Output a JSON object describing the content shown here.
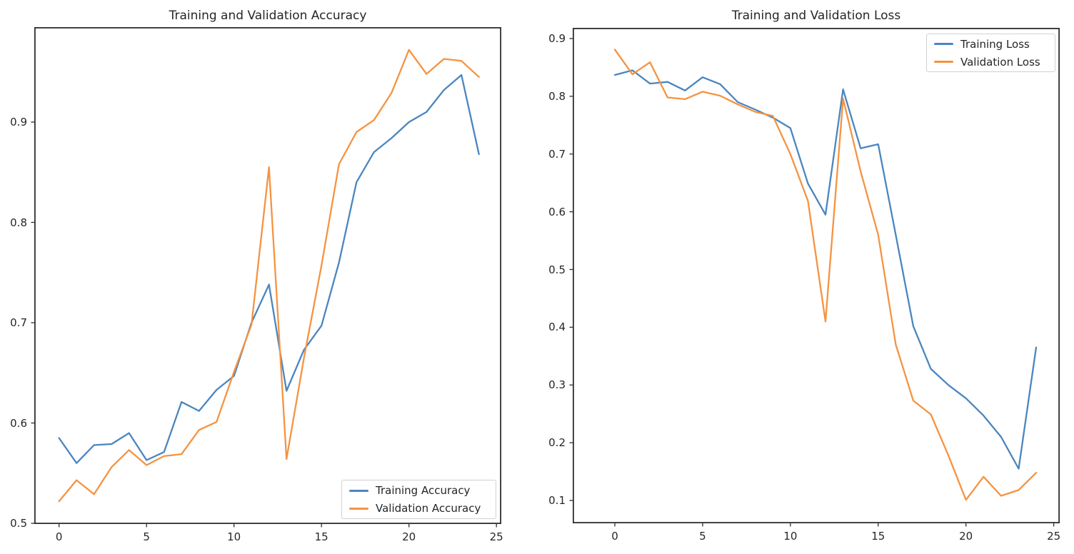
{
  "figure": {
    "background": "#ffffff",
    "text_color": "#262626",
    "axis_color": "#2e2e2e"
  },
  "chart_data": [
    {
      "type": "line",
      "title": "Training and Validation Accuracy",
      "xlabel": "",
      "ylabel": "",
      "x": [
        0,
        1,
        2,
        3,
        4,
        5,
        6,
        7,
        8,
        9,
        10,
        11,
        12,
        13,
        14,
        15,
        16,
        17,
        18,
        19,
        20,
        21,
        22,
        23,
        24
      ],
      "x_ticks": [
        0,
        5,
        10,
        15,
        20,
        25
      ],
      "y_ticks": [
        0.5,
        0.6,
        0.7,
        0.8,
        0.9
      ],
      "xlim": [
        -1.4,
        25.6
      ],
      "ylim": [
        0.4995,
        0.9945
      ],
      "grid": false,
      "legend_position": "lower right",
      "series": [
        {
          "name": "Training Accuracy",
          "color": "#4a86bf",
          "values": [
            0.585,
            0.56,
            0.578,
            0.579,
            0.59,
            0.563,
            0.571,
            0.621,
            0.612,
            0.633,
            0.647,
            0.7,
            0.738,
            0.632,
            0.673,
            0.697,
            0.76,
            0.84,
            0.87,
            0.884,
            0.9,
            0.91,
            0.932,
            0.947,
            0.868
          ]
        },
        {
          "name": "Validation Accuracy",
          "color": "#f59341",
          "values": [
            0.522,
            0.543,
            0.529,
            0.556,
            0.573,
            0.558,
            0.567,
            0.569,
            0.593,
            0.601,
            0.651,
            0.698,
            0.855,
            0.564,
            0.665,
            0.757,
            0.858,
            0.89,
            0.902,
            0.929,
            0.972,
            0.948,
            0.963,
            0.961,
            0.945
          ]
        }
      ]
    },
    {
      "type": "line",
      "title": "Training and Validation Loss",
      "xlabel": "",
      "ylabel": "",
      "x": [
        0,
        1,
        2,
        3,
        4,
        5,
        6,
        7,
        8,
        9,
        10,
        11,
        12,
        13,
        14,
        15,
        16,
        17,
        18,
        19,
        20,
        21,
        22,
        23,
        24
      ],
      "x_ticks": [
        0,
        5,
        10,
        15,
        20,
        25
      ],
      "y_ticks": [
        0.1,
        0.2,
        0.3,
        0.4,
        0.5,
        0.6,
        0.7,
        0.8,
        0.9
      ],
      "xlim": [
        -2.4,
        25.3
      ],
      "ylim": [
        0.06,
        0.92
      ],
      "grid": false,
      "legend_position": "upper right",
      "series": [
        {
          "name": "Training Loss",
          "color": "#4a86bf",
          "values": [
            0.837,
            0.845,
            0.822,
            0.825,
            0.81,
            0.833,
            0.821,
            0.79,
            0.777,
            0.763,
            0.745,
            0.649,
            0.595,
            0.812,
            0.71,
            0.717,
            0.56,
            0.402,
            0.328,
            0.3,
            0.277,
            0.247,
            0.21,
            0.155,
            0.365
          ]
        },
        {
          "name": "Validation Loss",
          "color": "#f59341",
          "values": [
            0.881,
            0.838,
            0.859,
            0.798,
            0.795,
            0.808,
            0.801,
            0.786,
            0.773,
            0.766,
            0.7,
            0.619,
            0.41,
            0.796,
            0.67,
            0.56,
            0.37,
            0.273,
            0.249,
            0.178,
            0.101,
            0.141,
            0.108,
            0.118,
            0.148
          ]
        }
      ]
    }
  ]
}
